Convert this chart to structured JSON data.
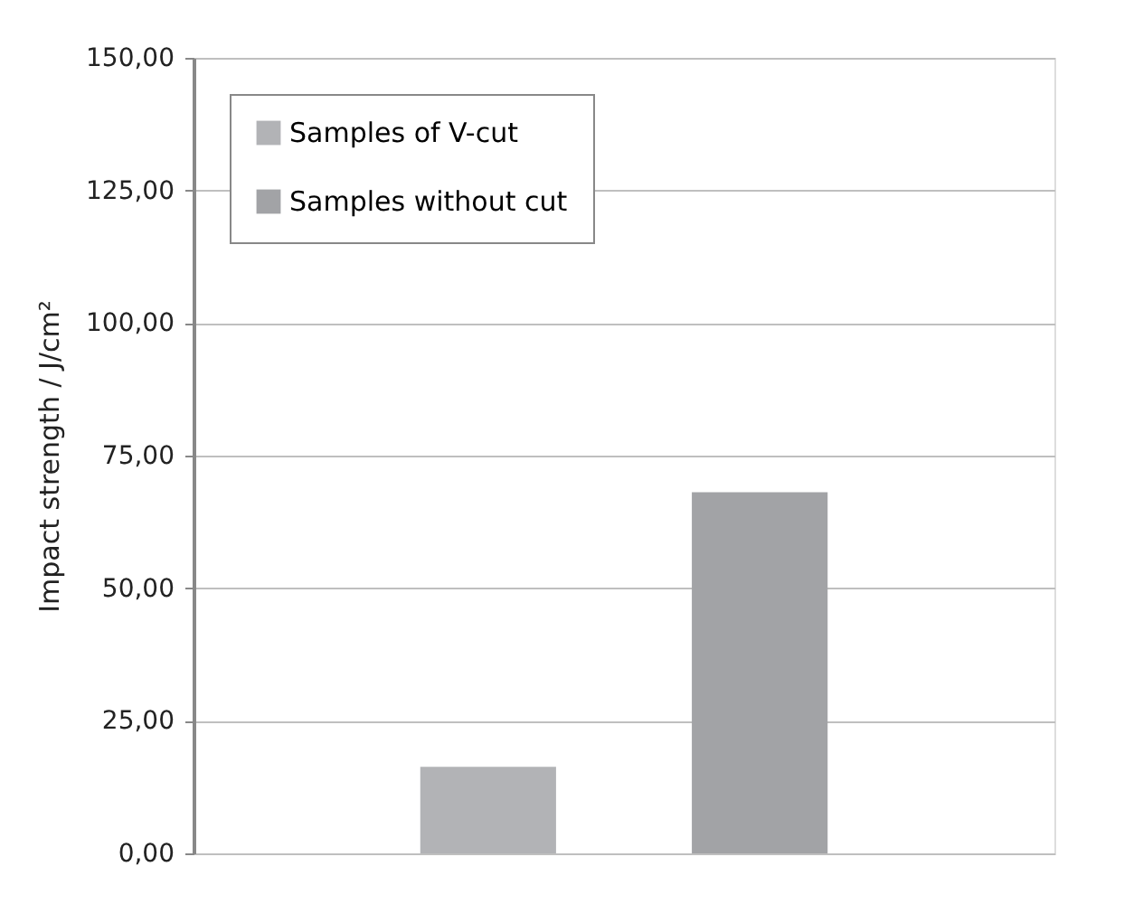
{
  "chart_data": {
    "type": "bar",
    "ylabel": "Impact strength / J/cm²",
    "categories": [
      null
    ],
    "series": [
      {
        "name": "Samples of V-cut",
        "color": "#b2b3b6",
        "values": [
          16.3
        ]
      },
      {
        "name": "Samples without cut",
        "color": "#a2a3a6",
        "values": [
          68.1
        ]
      }
    ],
    "ylim": [
      0,
      150
    ],
    "yticks": [
      {
        "value": 0,
        "label": "0,00"
      },
      {
        "value": 25,
        "label": "25,00"
      },
      {
        "value": 50,
        "label": "50,00"
      },
      {
        "value": 75,
        "label": "75,00"
      },
      {
        "value": 100,
        "label": "100,00"
      },
      {
        "value": 125,
        "label": "125,00"
      },
      {
        "value": 150,
        "label": "150,00"
      }
    ],
    "grid": "y",
    "legend": "top left"
  }
}
